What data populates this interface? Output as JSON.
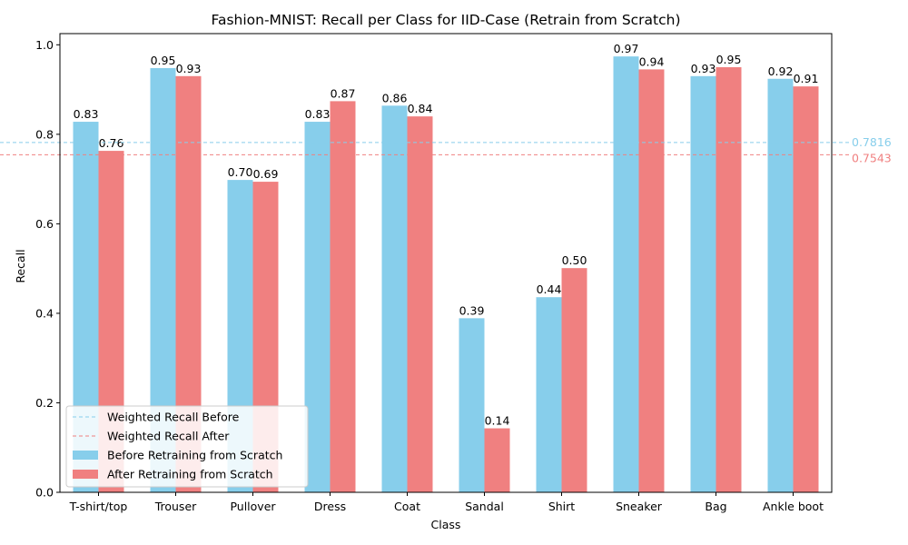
{
  "chart_data": {
    "type": "bar",
    "title": "Fashion-MNIST: Recall per Class for IID-Case (Retrain from Scratch)",
    "xlabel": "Class",
    "ylabel": "Recall",
    "ylim": [
      0,
      1.025
    ],
    "yticks": [
      "0.0",
      "0.2",
      "0.4",
      "0.6",
      "0.8",
      "1.0"
    ],
    "categories": [
      "T-shirt/top",
      "Trouser",
      "Pullover",
      "Dress",
      "Coat",
      "Sandal",
      "Shirt",
      "Sneaker",
      "Bag",
      "Ankle boot"
    ],
    "series": [
      {
        "name": "Before Retraining from Scratch",
        "color": "#87ceeb",
        "values": [
          0.828,
          0.948,
          0.698,
          0.828,
          0.864,
          0.389,
          0.436,
          0.974,
          0.93,
          0.924
        ],
        "labels": [
          "0.83",
          "0.95",
          "0.70",
          "0.83",
          "0.86",
          "0.39",
          "0.44",
          "0.97",
          "0.93",
          "0.92"
        ]
      },
      {
        "name": "After Retraining from Scratch",
        "color": "#f08080",
        "values": [
          0.763,
          0.93,
          0.694,
          0.874,
          0.84,
          0.143,
          0.501,
          0.945,
          0.95,
          0.907
        ],
        "labels": [
          "0.76",
          "0.93",
          "0.69",
          "0.87",
          "0.84",
          "0.14",
          "0.50",
          "0.94",
          "0.95",
          "0.91"
        ]
      }
    ],
    "reference_lines": [
      {
        "name": "Weighted Recall Before",
        "value": 0.7816,
        "label": "0.7816",
        "color": "#87ceeb"
      },
      {
        "name": "Weighted Recall After",
        "value": 0.7543,
        "label": "0.7543",
        "color": "#f08080"
      }
    ],
    "legend_position": "lower-left",
    "grid": false
  }
}
